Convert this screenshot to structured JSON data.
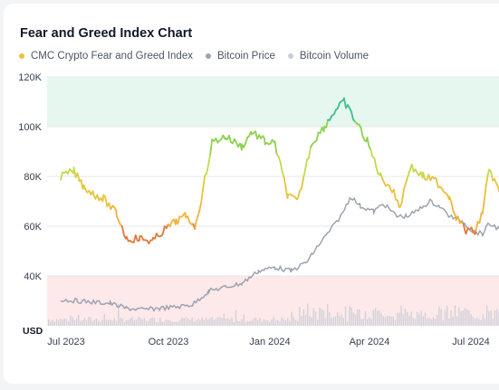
{
  "chart_data": {
    "type": "line",
    "title": "Fear and Greed Index Chart",
    "ylabel": "USD",
    "ylim": [
      20000,
      120000
    ],
    "yticks": [
      {
        "value": 40000,
        "label": "40K"
      },
      {
        "value": 60000,
        "label": "60K"
      },
      {
        "value": 80000,
        "label": "80K"
      },
      {
        "value": 100000,
        "label": "100K"
      },
      {
        "value": 120000,
        "label": "120K"
      }
    ],
    "xticks": [
      "Jul 2023",
      "Oct 2023",
      "Jan 2024",
      "Apr 2024",
      "Jul 2024"
    ],
    "xrange_months": [
      0,
      13.3
    ],
    "zones": [
      {
        "name": "greed",
        "from": 100000,
        "to": 120000,
        "color": "#e6f7ef"
      },
      {
        "name": "fear",
        "from": 20000,
        "to": 40000,
        "color": "#fde9ea"
      }
    ],
    "series": [
      {
        "name": "CMC Crypto Fear and Greed Index",
        "color": "#e8c33a",
        "x": [
          0,
          0.4,
          0.7,
          1.0,
          1.3,
          1.7,
          2.0,
          2.4,
          2.8,
          3.1,
          3.5,
          3.8,
          4.1,
          4.6,
          5.0,
          5.5,
          5.8,
          6.2,
          6.5,
          6.9,
          7.2,
          7.6,
          8.0,
          8.3,
          8.6,
          9.0,
          9.3,
          9.7,
          10.0,
          10.3,
          10.6,
          11.0,
          11.4,
          11.8,
          12.0,
          12.3,
          12.6,
          12.8,
          13.0,
          13.3
        ],
        "values": [
          80000,
          82000,
          76000,
          73000,
          71000,
          65000,
          55000,
          55000,
          54000,
          58000,
          62000,
          64000,
          60000,
          94000,
          96000,
          92000,
          98000,
          94000,
          93000,
          72000,
          70000,
          93000,
          100000,
          106000,
          110000,
          101000,
          94000,
          80000,
          76000,
          68000,
          84000,
          80000,
          78000,
          72000,
          64000,
          58000,
          58000,
          66000,
          83000,
          74000
        ]
      },
      {
        "name": "Bitcoin Price",
        "color": "#9ca3af",
        "x": [
          0,
          0.5,
          1.0,
          1.5,
          2.0,
          2.5,
          3.0,
          3.5,
          4.0,
          4.5,
          5.0,
          5.5,
          6.0,
          6.5,
          7.0,
          7.5,
          7.8,
          8.1,
          8.5,
          8.8,
          9.1,
          9.5,
          9.8,
          10.2,
          10.5,
          10.8,
          11.2,
          11.5,
          11.8,
          12.2,
          12.5,
          12.8,
          13.0,
          13.3
        ],
        "values": [
          30500,
          30000,
          29500,
          29000,
          27000,
          26500,
          27000,
          27500,
          28500,
          34000,
          35500,
          37000,
          42000,
          43500,
          42000,
          46000,
          52000,
          57000,
          64000,
          72000,
          68000,
          66000,
          69000,
          64000,
          64000,
          66000,
          70000,
          68000,
          64000,
          62000,
          58000,
          57000,
          61000,
          59000
        ]
      },
      {
        "name": "Bitcoin Volume",
        "color": "#c7ccd6",
        "values": []
      }
    ]
  }
}
